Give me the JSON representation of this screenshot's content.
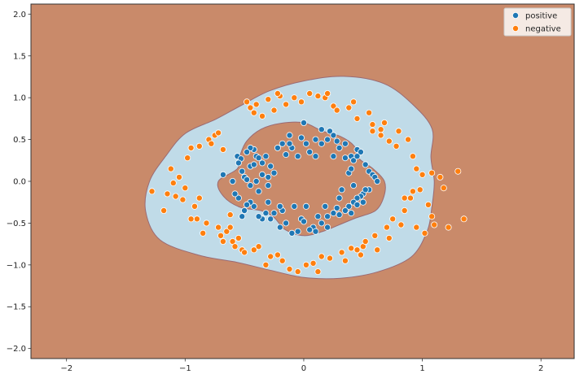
{
  "chart_data": {
    "type": "scatter",
    "title": "",
    "xlabel": "",
    "ylabel": "",
    "xlim": [
      -2.3,
      2.28
    ],
    "ylim": [
      -2.12,
      2.12
    ],
    "xticks": [
      -2,
      -1,
      0,
      1,
      2
    ],
    "xtick_labels": [
      "−2",
      "−1",
      "0",
      "1",
      "2"
    ],
    "yticks": [
      -2.0,
      -1.5,
      -1.0,
      -0.5,
      0.0,
      0.5,
      1.0,
      1.5,
      2.0
    ],
    "ytick_labels": [
      "−2.0",
      "−1.5",
      "−1.0",
      "−0.5",
      "0.0",
      "0.5",
      "1.0",
      "1.5",
      "2.0"
    ],
    "grid": false,
    "legend_position": "top-right",
    "background_color": "#c98a6a",
    "decision_region": {
      "color": "#c0dbe8",
      "outer_radius": [
        1.1,
        1.11,
        1.25,
        1.3,
        1.35,
        1.3,
        1.2,
        1.12,
        1.05,
        1.05,
        1.15,
        1.2,
        1.3,
        1.38,
        1.4,
        1.25,
        1.12,
        1.1,
        1.15,
        1.2,
        1.25,
        1.28,
        1.2,
        1.12
      ],
      "inner_radius": [
        0.68,
        0.6,
        0.54,
        0.6,
        0.62,
        0.62,
        0.7,
        0.72,
        0.72,
        0.68,
        0.62,
        0.58,
        0.72,
        0.7,
        0.62,
        0.5,
        0.5,
        0.6,
        0.65,
        0.62,
        0.6,
        0.62,
        0.7,
        0.7
      ]
    },
    "series": [
      {
        "name": "positive",
        "color": "#1f77b4",
        "points": [
          [
            -0.68,
            0.08
          ],
          [
            -0.6,
            0.0
          ],
          [
            -0.56,
            0.3
          ],
          [
            -0.53,
            0.27
          ],
          [
            -0.55,
            0.22
          ],
          [
            -0.52,
            0.12
          ],
          [
            -0.5,
            0.05
          ],
          [
            -0.48,
            0.02
          ],
          [
            -0.45,
            0.18
          ],
          [
            -0.42,
            0.38
          ],
          [
            -0.4,
            0.3
          ],
          [
            -0.38,
            0.28
          ],
          [
            -0.35,
            0.22
          ],
          [
            -0.32,
            0.3
          ],
          [
            -0.28,
            0.18
          ],
          [
            -0.25,
            0.1
          ],
          [
            -0.22,
            0.4
          ],
          [
            -0.18,
            0.45
          ],
          [
            -0.15,
            0.32
          ],
          [
            -0.12,
            0.55
          ],
          [
            -0.1,
            0.4
          ],
          [
            -0.05,
            0.3
          ],
          [
            -0.02,
            0.52
          ],
          [
            0.02,
            0.45
          ],
          [
            0.05,
            0.35
          ],
          [
            0.1,
            0.5
          ],
          [
            0.15,
            0.45
          ],
          [
            0.2,
            0.5
          ],
          [
            0.22,
            0.6
          ],
          [
            0.25,
            0.55
          ],
          [
            0.28,
            0.48
          ],
          [
            0.3,
            0.4
          ],
          [
            0.35,
            0.45
          ],
          [
            0.4,
            0.3
          ],
          [
            0.42,
            0.25
          ],
          [
            0.45,
            0.38
          ],
          [
            0.48,
            0.35
          ],
          [
            0.52,
            0.2
          ],
          [
            0.55,
            0.12
          ],
          [
            0.58,
            0.08
          ],
          [
            0.6,
            0.05
          ],
          [
            0.62,
            0.0
          ],
          [
            0.55,
            -0.1
          ],
          [
            0.5,
            -0.15
          ],
          [
            0.48,
            -0.18
          ],
          [
            0.45,
            -0.2
          ],
          [
            0.42,
            -0.25
          ],
          [
            0.38,
            -0.3
          ],
          [
            0.35,
            -0.35
          ],
          [
            0.3,
            -0.4
          ],
          [
            0.25,
            -0.38
          ],
          [
            0.2,
            -0.42
          ],
          [
            0.15,
            -0.5
          ],
          [
            0.12,
            -0.42
          ],
          [
            0.08,
            -0.55
          ],
          [
            0.05,
            -0.58
          ],
          [
            0.02,
            -0.3
          ],
          [
            -0.02,
            -0.45
          ],
          [
            -0.05,
            -0.6
          ],
          [
            -0.1,
            -0.62
          ],
          [
            -0.15,
            -0.5
          ],
          [
            -0.18,
            -0.35
          ],
          [
            -0.2,
            -0.3
          ],
          [
            -0.25,
            -0.38
          ],
          [
            -0.3,
            -0.25
          ],
          [
            -0.32,
            -0.38
          ],
          [
            -0.35,
            -0.45
          ],
          [
            -0.38,
            -0.42
          ],
          [
            -0.42,
            -0.3
          ],
          [
            -0.45,
            -0.25
          ],
          [
            -0.48,
            -0.28
          ],
          [
            -0.5,
            -0.35
          ],
          [
            -0.52,
            -0.42
          ],
          [
            -0.55,
            -0.2
          ],
          [
            -0.58,
            -0.15
          ],
          [
            -0.38,
            -0.12
          ],
          [
            -0.3,
            -0.05
          ],
          [
            -0.4,
            0.0
          ],
          [
            -0.45,
            -0.05
          ],
          [
            -0.35,
            0.08
          ],
          [
            0.38,
            0.1
          ],
          [
            0.42,
            -0.05
          ],
          [
            0.32,
            -0.1
          ],
          [
            0.3,
            -0.2
          ],
          [
            0.4,
            -0.38
          ],
          [
            0.18,
            -0.3
          ],
          [
            -0.08,
            -0.3
          ],
          [
            -0.28,
            -0.45
          ],
          [
            0.25,
            0.3
          ],
          [
            0.1,
            0.3
          ],
          [
            -0.12,
            0.45
          ],
          [
            -0.45,
            0.4
          ],
          [
            0.5,
            -0.25
          ],
          [
            0.45,
            -0.28
          ],
          [
            0.2,
            -0.55
          ],
          [
            0.0,
            -0.48
          ],
          [
            -0.2,
            -0.55
          ],
          [
            0.0,
            0.7
          ],
          [
            0.15,
            0.62
          ],
          [
            0.35,
            0.28
          ],
          [
            0.52,
            -0.1
          ],
          [
            -0.48,
            0.35
          ],
          [
            -0.42,
            0.2
          ],
          [
            -0.3,
            0.05
          ],
          [
            0.1,
            -0.6
          ],
          [
            0.28,
            -0.32
          ],
          [
            0.45,
            0.3
          ],
          [
            0.4,
            0.15
          ]
        ]
      },
      {
        "name": "negative",
        "color": "#ff7f0e",
        "points": [
          [
            -1.28,
            -0.12
          ],
          [
            -1.18,
            -0.35
          ],
          [
            -1.12,
            0.15
          ],
          [
            -1.1,
            -0.02
          ],
          [
            -1.08,
            -0.18
          ],
          [
            -1.05,
            0.05
          ],
          [
            -1.02,
            -0.22
          ],
          [
            -1.0,
            -0.08
          ],
          [
            -0.98,
            0.28
          ],
          [
            -0.95,
            0.4
          ],
          [
            -0.92,
            -0.3
          ],
          [
            -0.9,
            -0.45
          ],
          [
            -0.88,
            -0.2
          ],
          [
            -0.85,
            -0.62
          ],
          [
            -0.82,
            -0.5
          ],
          [
            -0.8,
            0.5
          ],
          [
            -0.78,
            0.45
          ],
          [
            -0.75,
            0.55
          ],
          [
            -0.72,
            -0.55
          ],
          [
            -0.7,
            -0.65
          ],
          [
            -0.68,
            0.38
          ],
          [
            -0.65,
            -0.6
          ],
          [
            -0.62,
            -0.4
          ],
          [
            -0.6,
            -0.72
          ],
          [
            -0.58,
            -0.78
          ],
          [
            -0.55,
            -0.68
          ],
          [
            -0.52,
            -0.82
          ],
          [
            -0.5,
            -0.85
          ],
          [
            -0.48,
            0.95
          ],
          [
            -0.45,
            0.88
          ],
          [
            -0.42,
            0.82
          ],
          [
            -0.4,
            0.92
          ],
          [
            -0.38,
            -0.78
          ],
          [
            -0.35,
            0.78
          ],
          [
            -0.3,
            0.98
          ],
          [
            -0.28,
            -0.9
          ],
          [
            -0.25,
            0.85
          ],
          [
            -0.22,
            -0.88
          ],
          [
            -0.2,
            1.02
          ],
          [
            -0.18,
            -0.95
          ],
          [
            -0.15,
            0.92
          ],
          [
            -0.12,
            -1.05
          ],
          [
            -0.08,
            1.0
          ],
          [
            -0.05,
            -1.08
          ],
          [
            -0.02,
            0.95
          ],
          [
            0.02,
            -1.0
          ],
          [
            0.05,
            1.05
          ],
          [
            0.08,
            -0.98
          ],
          [
            0.12,
            1.02
          ],
          [
            0.15,
            -0.9
          ],
          [
            0.18,
            1.0
          ],
          [
            0.22,
            -0.92
          ],
          [
            0.25,
            0.9
          ],
          [
            0.28,
            0.85
          ],
          [
            0.32,
            -0.85
          ],
          [
            0.35,
            -0.95
          ],
          [
            0.38,
            0.88
          ],
          [
            0.4,
            -0.8
          ],
          [
            0.42,
            0.95
          ],
          [
            0.45,
            0.75
          ],
          [
            0.48,
            -0.88
          ],
          [
            0.5,
            -0.78
          ],
          [
            0.52,
            -0.72
          ],
          [
            0.55,
            0.82
          ],
          [
            0.58,
            0.6
          ],
          [
            0.6,
            -0.65
          ],
          [
            0.62,
            -0.82
          ],
          [
            0.65,
            0.55
          ],
          [
            0.68,
            0.7
          ],
          [
            0.7,
            -0.55
          ],
          [
            0.72,
            -0.68
          ],
          [
            0.75,
            -0.45
          ],
          [
            0.78,
            0.42
          ],
          [
            0.8,
            0.6
          ],
          [
            0.82,
            -0.52
          ],
          [
            0.85,
            -0.35
          ],
          [
            0.88,
            0.5
          ],
          [
            0.9,
            -0.2
          ],
          [
            0.92,
            0.3
          ],
          [
            0.95,
            0.15
          ],
          [
            0.98,
            -0.1
          ],
          [
            1.0,
            0.08
          ],
          [
            1.02,
            -0.62
          ],
          [
            1.05,
            -0.28
          ],
          [
            1.08,
            0.1
          ],
          [
            1.1,
            -0.52
          ],
          [
            1.15,
            0.05
          ],
          [
            1.18,
            -0.08
          ],
          [
            1.22,
            -0.55
          ],
          [
            1.3,
            0.12
          ],
          [
            1.35,
            -0.45
          ],
          [
            -1.15,
            -0.15
          ],
          [
            -0.95,
            -0.45
          ],
          [
            -0.72,
            0.58
          ],
          [
            -0.62,
            -0.55
          ],
          [
            -0.42,
            -0.82
          ],
          [
            0.72,
            0.48
          ],
          [
            0.92,
            -0.12
          ],
          [
            0.58,
            0.68
          ],
          [
            -0.22,
            1.05
          ],
          [
            0.2,
            1.05
          ],
          [
            -0.68,
            -0.72
          ],
          [
            0.85,
            -0.2
          ],
          [
            1.08,
            -0.42
          ],
          [
            -0.88,
            0.42
          ],
          [
            0.12,
            -1.08
          ],
          [
            -0.32,
            -1.0
          ],
          [
            0.45,
            -0.82
          ],
          [
            0.65,
            0.62
          ],
          [
            0.95,
            -0.55
          ]
        ]
      }
    ]
  }
}
